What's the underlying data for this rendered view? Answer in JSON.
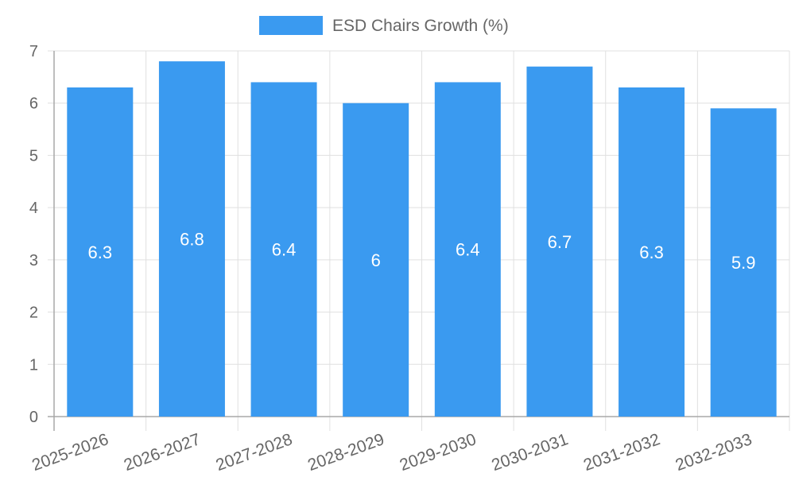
{
  "chart_data": {
    "type": "bar",
    "categories": [
      "2025-2026",
      "2026-2027",
      "2027-2028",
      "2028-2029",
      "2029-2030",
      "2030-2031",
      "2031-2032",
      "2032-2033"
    ],
    "series": [
      {
        "name": "ESD Chairs Growth (%)",
        "values": [
          6.3,
          6.8,
          6.4,
          6,
          6.4,
          6.7,
          6.3,
          5.9
        ],
        "labels": [
          "6.3",
          "6.8",
          "6.4",
          "6",
          "6.4",
          "6.7",
          "6.3",
          "5.9"
        ],
        "color": "#3a9af0"
      }
    ],
    "ylim": [
      0,
      7
    ],
    "yticks": [
      0,
      1,
      2,
      3,
      4,
      5,
      6,
      7
    ],
    "ytick_labels": [
      "0",
      "1",
      "2",
      "3",
      "4",
      "5",
      "6",
      "7"
    ],
    "grid": true,
    "legend_position": "top-center",
    "title": "",
    "xlabel": "",
    "ylabel": "",
    "colors": {
      "grid": "#e0e0e0",
      "axis": "#a8a8a8",
      "tick_text": "#666666",
      "data_label": "#ffffff",
      "legend_text": "#666666"
    }
  }
}
